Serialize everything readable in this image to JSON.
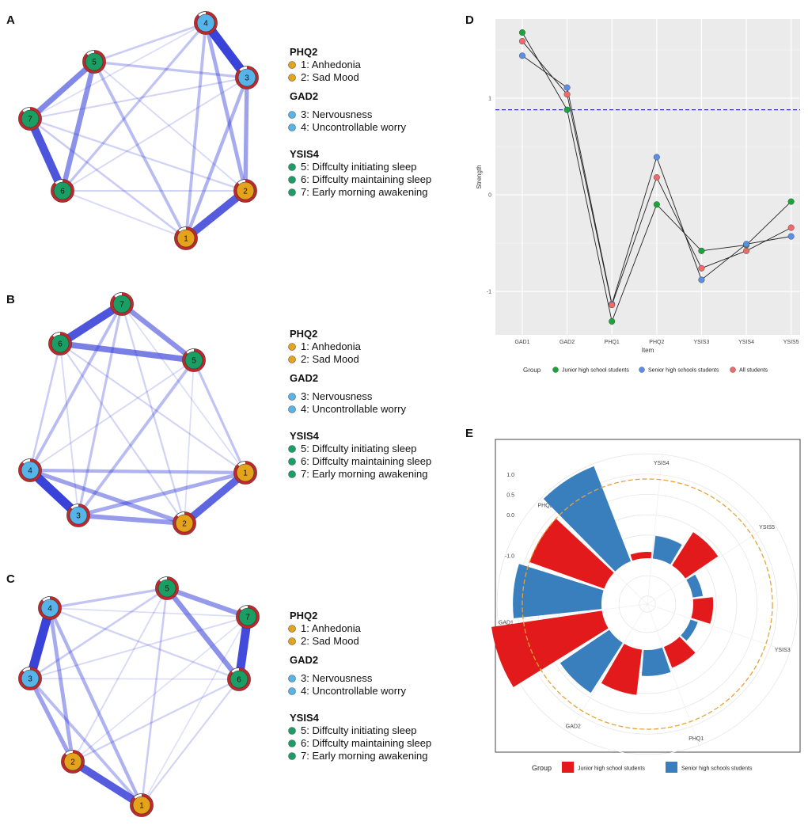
{
  "panel_letters": [
    "A",
    "B",
    "C",
    "D",
    "E"
  ],
  "legend": {
    "groups": [
      {
        "name": "PHQ2",
        "color": "#e5a31c",
        "items": [
          "1: Anhedonia",
          "2: Sad Mood"
        ]
      },
      {
        "name": "GAD2",
        "color": "#56b4e9",
        "items": [
          "3: Nervousness",
          "4: Uncontrollable worry"
        ]
      },
      {
        "name": "YSIS4",
        "color": "#1a9e63",
        "items": [
          "5:  Diffculty initiating sleep",
          "6:  Diffculty maintaining sleep",
          "7:  Early morning awakening"
        ]
      }
    ]
  },
  "colors": {
    "phq": "#e5a31c",
    "gad": "#56b4e9",
    "ysis": "#1a9e63",
    "ring": "#c0282c",
    "edge": "#2b35d6",
    "junior": "#1aa538",
    "senior": "#5b8fe6",
    "all": "#ee6b6b",
    "e_junior": "#e31a1c",
    "e_senior": "#3a7fbd",
    "cutoff": "#e6a33a"
  },
  "chart_data": [
    {
      "type": "network",
      "panel": "A",
      "nodes": [
        "1",
        "2",
        "3",
        "4",
        "5",
        "6",
        "7"
      ],
      "edges": [
        {
          "from": 3,
          "to": 4,
          "weight": 0.95
        },
        {
          "from": 6,
          "to": 7,
          "weight": 0.85
        },
        {
          "from": 1,
          "to": 2,
          "weight": 0.8
        },
        {
          "from": 5,
          "to": 7,
          "weight": 0.55
        },
        {
          "from": 5,
          "to": 6,
          "weight": 0.5
        },
        {
          "from": 2,
          "to": 3,
          "weight": 0.4
        },
        {
          "from": 2,
          "to": 4,
          "weight": 0.35
        },
        {
          "from": 1,
          "to": 3,
          "weight": 0.3
        },
        {
          "from": 1,
          "to": 4,
          "weight": 0.25
        },
        {
          "from": 1,
          "to": 5,
          "weight": 0.25
        },
        {
          "from": 4,
          "to": 6,
          "weight": 0.2
        },
        {
          "from": 3,
          "to": 5,
          "weight": 0.2
        },
        {
          "from": 4,
          "to": 5,
          "weight": 0.15
        },
        {
          "from": 1,
          "to": 7,
          "weight": 0.15
        },
        {
          "from": 2,
          "to": 7,
          "weight": 0.12
        },
        {
          "from": 2,
          "to": 6,
          "weight": 0.1
        },
        {
          "from": 3,
          "to": 7,
          "weight": 0.1
        },
        {
          "from": 1,
          "to": 6,
          "weight": 0.08
        },
        {
          "from": 2,
          "to": 5,
          "weight": 0.08
        },
        {
          "from": 3,
          "to": 6,
          "weight": 0.08
        },
        {
          "from": 4,
          "to": 7,
          "weight": 0.06
        }
      ]
    },
    {
      "type": "network",
      "panel": "B",
      "nodes": [
        "1",
        "2",
        "3",
        "4",
        "5",
        "6",
        "7"
      ],
      "edges": [
        {
          "from": 3,
          "to": 4,
          "weight": 0.95
        },
        {
          "from": 6,
          "to": 7,
          "weight": 0.85
        },
        {
          "from": 1,
          "to": 2,
          "weight": 0.75
        },
        {
          "from": 5,
          "to": 6,
          "weight": 0.6
        },
        {
          "from": 5,
          "to": 7,
          "weight": 0.5
        },
        {
          "from": 2,
          "to": 3,
          "weight": 0.45
        },
        {
          "from": 2,
          "to": 4,
          "weight": 0.4
        },
        {
          "from": 1,
          "to": 3,
          "weight": 0.35
        },
        {
          "from": 1,
          "to": 4,
          "weight": 0.3
        },
        {
          "from": 3,
          "to": 5,
          "weight": 0.25
        },
        {
          "from": 4,
          "to": 7,
          "weight": 0.25
        },
        {
          "from": 1,
          "to": 5,
          "weight": 0.2
        },
        {
          "from": 3,
          "to": 7,
          "weight": 0.2
        },
        {
          "from": 4,
          "to": 6,
          "weight": 0.15
        },
        {
          "from": 2,
          "to": 7,
          "weight": 0.12
        },
        {
          "from": 1,
          "to": 6,
          "weight": 0.1
        },
        {
          "from": 2,
          "to": 6,
          "weight": 0.1
        },
        {
          "from": 4,
          "to": 5,
          "weight": 0.08
        },
        {
          "from": 3,
          "to": 6,
          "weight": 0.08
        },
        {
          "from": 2,
          "to": 5,
          "weight": 0.06
        },
        {
          "from": 1,
          "to": 7,
          "weight": 0.06
        }
      ]
    },
    {
      "type": "network",
      "panel": "C",
      "nodes": [
        "1",
        "2",
        "3",
        "4",
        "5",
        "6",
        "7"
      ],
      "edges": [
        {
          "from": 3,
          "to": 4,
          "weight": 0.95
        },
        {
          "from": 6,
          "to": 7,
          "weight": 0.9
        },
        {
          "from": 1,
          "to": 2,
          "weight": 0.8
        },
        {
          "from": 5,
          "to": 6,
          "weight": 0.5
        },
        {
          "from": 5,
          "to": 7,
          "weight": 0.45
        },
        {
          "from": 2,
          "to": 3,
          "weight": 0.4
        },
        {
          "from": 2,
          "to": 4,
          "weight": 0.35
        },
        {
          "from": 1,
          "to": 4,
          "weight": 0.3
        },
        {
          "from": 1,
          "to": 3,
          "weight": 0.25
        },
        {
          "from": 4,
          "to": 5,
          "weight": 0.2
        },
        {
          "from": 3,
          "to": 5,
          "weight": 0.15
        },
        {
          "from": 1,
          "to": 5,
          "weight": 0.15
        },
        {
          "from": 2,
          "to": 6,
          "weight": 0.12
        },
        {
          "from": 4,
          "to": 6,
          "weight": 0.12
        },
        {
          "from": 1,
          "to": 6,
          "weight": 0.1
        },
        {
          "from": 3,
          "to": 7,
          "weight": 0.08
        },
        {
          "from": 2,
          "to": 5,
          "weight": 0.08
        },
        {
          "from": 3,
          "to": 6,
          "weight": 0.06
        },
        {
          "from": 4,
          "to": 7,
          "weight": 0.06
        },
        {
          "from": 2,
          "to": 7,
          "weight": 0.05
        },
        {
          "from": 1,
          "to": 7,
          "weight": 0.05
        }
      ]
    },
    {
      "type": "line",
      "panel": "D",
      "categories": [
        "GAD1",
        "GAD2",
        "PHQ1",
        "PHQ2",
        "YSIS3",
        "YSIS4",
        "YSIS5"
      ],
      "xlabel": "Item",
      "ylabel": "Strength",
      "ylim": [
        -1.45,
        1.82
      ],
      "yticks": [
        -1,
        0,
        1
      ],
      "cutoff": 0.88,
      "legend_title": "Group",
      "series": [
        {
          "name": "Junior high school students",
          "values": [
            1.68,
            0.88,
            -1.31,
            -0.1,
            -0.58,
            -0.52,
            -0.07
          ]
        },
        {
          "name": "Senior high schools students",
          "values": [
            1.44,
            1.11,
            -1.13,
            0.39,
            -0.88,
            -0.51,
            -0.43
          ]
        },
        {
          "name": "All students",
          "values": [
            1.59,
            1.04,
            -1.14,
            0.18,
            -0.76,
            -0.58,
            -0.34
          ]
        }
      ]
    },
    {
      "type": "bar",
      "subtype": "circular",
      "panel": "E",
      "categories": [
        "YSIS4",
        "YSIS5",
        "YSIS3",
        "PHQ1",
        "GAD2",
        "GAD1",
        "PHQ2"
      ],
      "rticks": [
        1.0,
        0.5,
        0.0,
        -1.0
      ],
      "rlim": [
        -2.2,
        1.6
      ],
      "cutoff": 0.88,
      "legend_title": "Group",
      "series": [
        {
          "name": "Junior high school students",
          "values": [
            -1.36,
            -0.1,
            -0.58,
            -0.52,
            0.05,
            1.68,
            0.88
          ]
        },
        {
          "name": "Senior high schools students",
          "values": [
            -0.51,
            -0.82,
            -0.88,
            -0.43,
            0.39,
            1.11,
            1.44
          ]
        }
      ]
    }
  ]
}
